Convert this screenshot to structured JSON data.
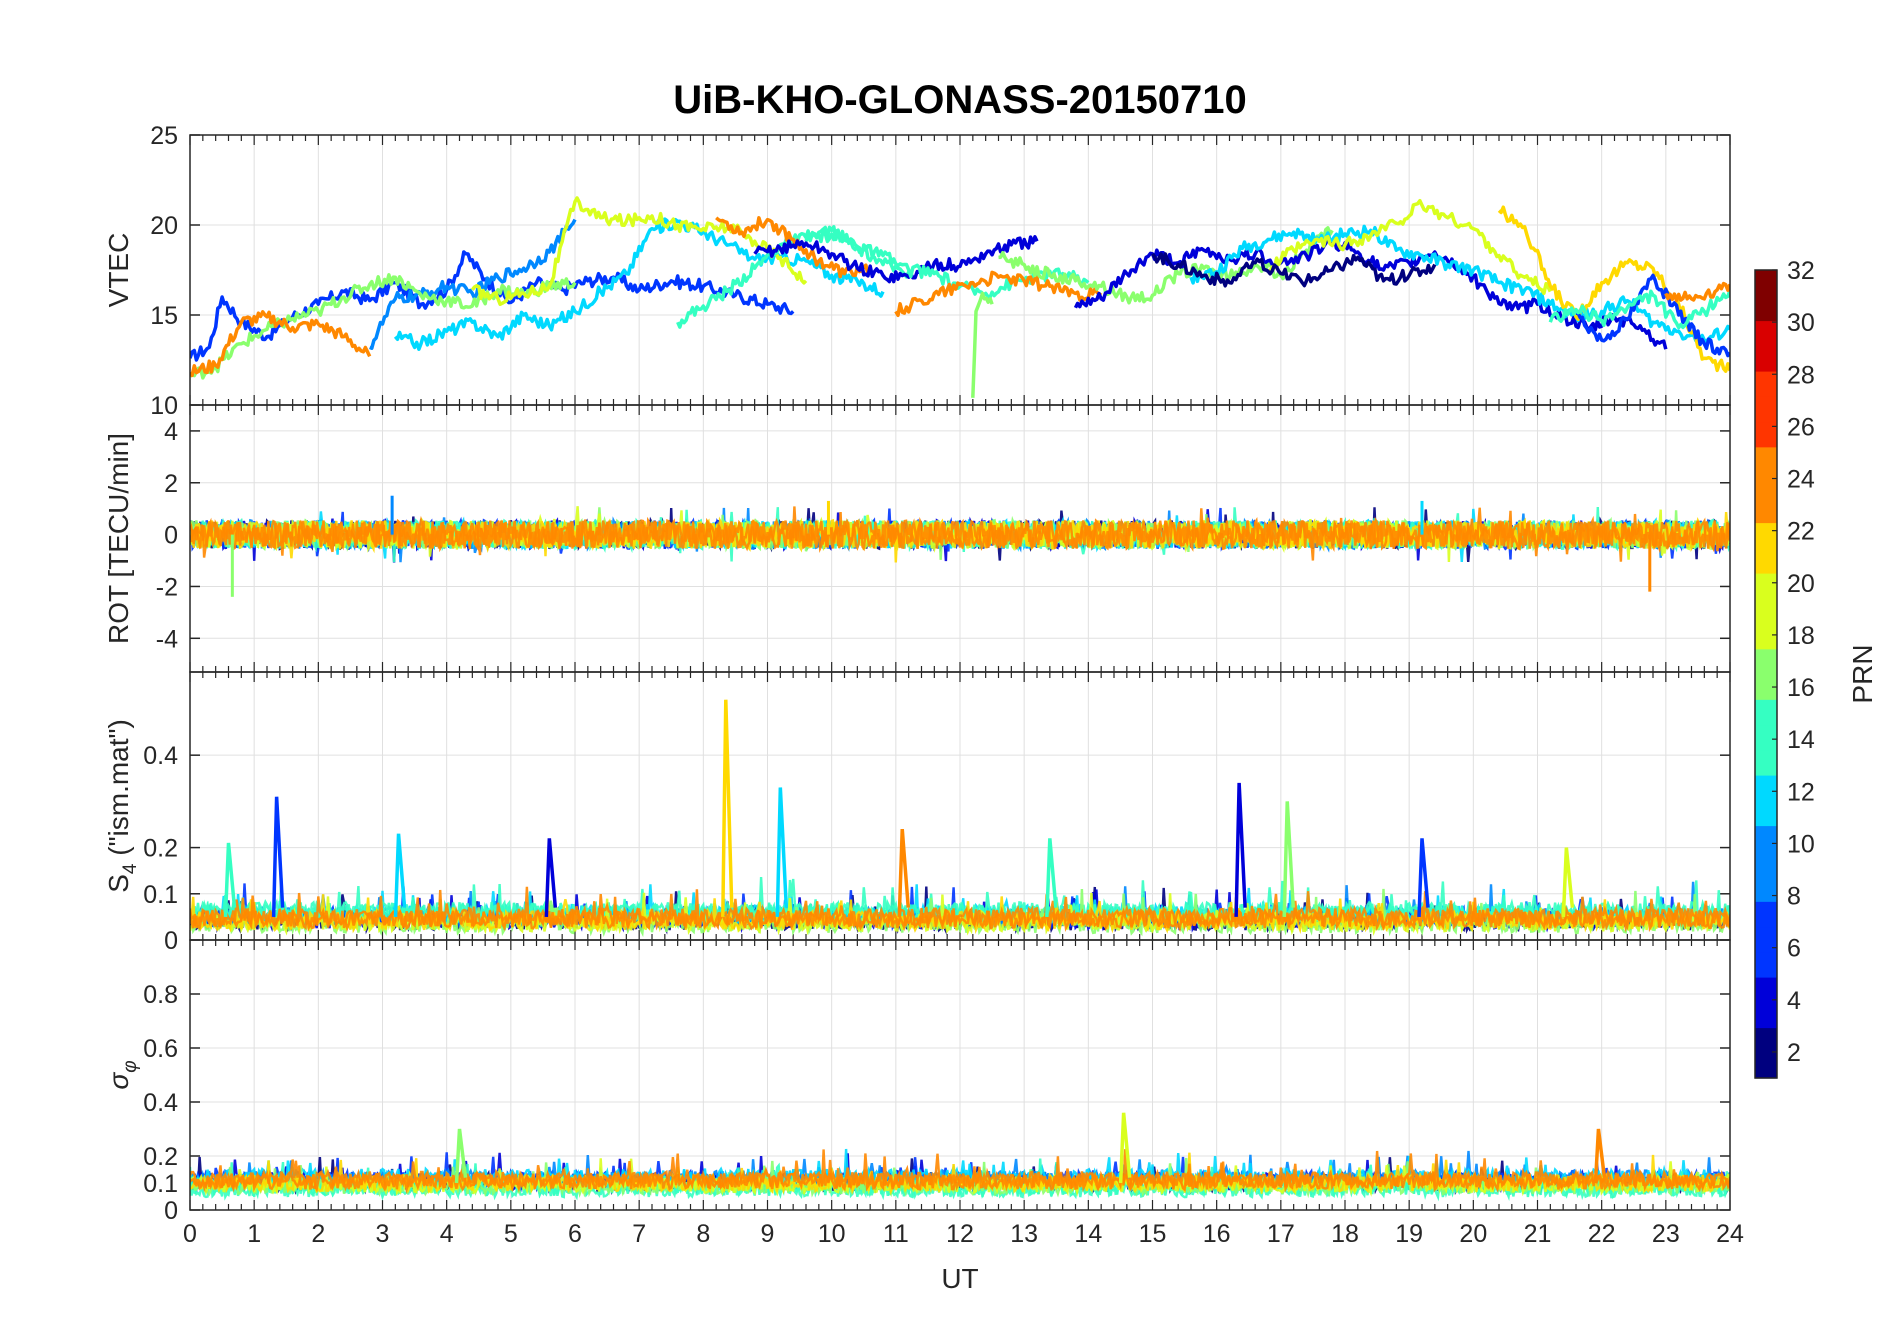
{
  "title": "UiB-KHO-GLONASS-20150710",
  "colors": {
    "grid": "#e0e0e0",
    "axis": "#262626",
    "colorbar": [
      "#00007f",
      "#0000d9",
      "#0035ff",
      "#0088ff",
      "#00d9ff",
      "#35ffc2",
      "#8aff6d",
      "#d9ff1e",
      "#ffd900",
      "#ff8800",
      "#ff3500",
      "#d90000",
      "#7f0000"
    ]
  },
  "chart_data": {
    "type": "line",
    "xlabel": "UT",
    "xlim": [
      0,
      24
    ],
    "xticks": [
      "0",
      "1",
      "2",
      "3",
      "4",
      "5",
      "6",
      "7",
      "8",
      "9",
      "10",
      "11",
      "12",
      "13",
      "14",
      "15",
      "16",
      "17",
      "18",
      "19",
      "20",
      "21",
      "22",
      "23",
      "24"
    ],
    "colorbar": {
      "label": "PRN",
      "ticks": [
        "2",
        "4",
        "6",
        "8",
        "10",
        "12",
        "14",
        "16",
        "18",
        "20",
        "22",
        "24",
        "26",
        "28",
        "30",
        "32"
      ],
      "range": [
        1,
        32
      ]
    },
    "panels": [
      {
        "ylabel": "VTEC",
        "ylim": [
          10,
          25
        ],
        "yticks": [
          "10",
          "15",
          "20",
          "25"
        ],
        "series": [
          {
            "prn": 6,
            "x": [
              0,
              0.3,
              0.5,
              0.8,
              1.2,
              1.6,
              2.0,
              2.4,
              2.8,
              3.2,
              3.6,
              4.0,
              4.3,
              4.6,
              5.0,
              5.4,
              5.8,
              6.2,
              6.6,
              7.0,
              7.5,
              8.0,
              8.5,
              9.0,
              9.4
            ],
            "y": [
              12.6,
              13.2,
              16.0,
              14.6,
              13.8,
              14.9,
              15.6,
              16.3,
              15.8,
              16.8,
              15.6,
              16.4,
              18.4,
              17.0,
              15.7,
              16.8,
              16.4,
              16.9,
              17.1,
              16.4,
              16.9,
              16.6,
              16.1,
              15.6,
              15.2
            ]
          },
          {
            "prn": 9,
            "x": [
              2.8,
              3.2,
              3.6,
              4.0,
              4.4,
              4.8,
              5.2,
              5.6,
              6.0
            ],
            "y": [
              13.2,
              15.9,
              16.1,
              16.6,
              16.2,
              17.1,
              17.6,
              18.5,
              20.3
            ]
          },
          {
            "prn": 12,
            "x": [
              3.2,
              3.6,
              4.0,
              4.4,
              4.8,
              5.2,
              5.6,
              6.0,
              6.4,
              6.8,
              7.2,
              7.6,
              8.0,
              8.4,
              8.8,
              9.2,
              9.6,
              10.0,
              10.4,
              10.8
            ],
            "y": [
              13.8,
              13.4,
              14.1,
              14.6,
              13.8,
              15.0,
              14.4,
              15.2,
              16.3,
              17.3,
              19.8,
              20.2,
              19.6,
              18.9,
              18.1,
              18.2,
              18.0,
              17.2,
              16.9,
              16.3
            ]
          },
          {
            "prn": 17,
            "x": [
              0,
              0.4,
              0.8,
              1.2,
              1.6,
              2.0,
              2.4,
              2.8,
              3.2,
              3.6,
              4.0,
              4.4,
              4.8,
              5.2,
              5.6,
              6.0
            ],
            "y": [
              11.6,
              12.1,
              13.4,
              14.2,
              14.8,
              15.2,
              16.0,
              16.7,
              17.1,
              16.1,
              15.8,
              15.5,
              16.4,
              16.2,
              16.6,
              16.8
            ]
          },
          {
            "prn": 20,
            "x": [
              4.4,
              4.8,
              5.2,
              5.6,
              6.0,
              6.4,
              6.8,
              7.2,
              7.6,
              8.0,
              8.4,
              8.8,
              9.2,
              9.6
            ],
            "y": [
              16.4,
              15.9,
              16.2,
              16.6,
              21.3,
              20.4,
              20.2,
              20.5,
              20.0,
              19.8,
              19.9,
              19.1,
              18.2,
              16.9
            ]
          },
          {
            "prn": 14,
            "x": [
              7.6,
              8.0,
              8.4,
              8.8,
              9.2,
              9.6,
              10.0,
              10.4,
              10.8,
              11.2
            ],
            "y": [
              14.6,
              15.5,
              16.4,
              17.6,
              18.9,
              19.3,
              19.7,
              18.8,
              17.8,
              17.4
            ]
          },
          {
            "prn": 23,
            "x": [
              0,
              0.4,
              0.8,
              1.2,
              1.6,
              2.0,
              2.4,
              2.8
            ],
            "y": [
              11.8,
              12.2,
              14.6,
              14.9,
              14.3,
              14.5,
              13.8,
              12.7
            ]
          },
          {
            "prn": 23,
            "x": [
              8.2,
              8.6,
              9.0,
              9.4,
              9.8,
              10.2,
              10.6
            ],
            "y": [
              20.4,
              19.6,
              20.3,
              19.2,
              18.0,
              17.3,
              17.6
            ]
          },
          {
            "prn": 4,
            "x": [
              8.8,
              9.2,
              9.6,
              10.0,
              10.4,
              10.8,
              11.2,
              11.6,
              12.0,
              12.4,
              12.8,
              13.2
            ],
            "y": [
              18.4,
              18.7,
              19.0,
              18.4,
              17.6,
              17.2,
              17.1,
              17.9,
              17.7,
              18.4,
              18.9,
              19.1
            ]
          },
          {
            "prn": 15,
            "x": [
              9.6,
              10.0,
              10.4,
              10.8,
              11.2,
              11.6,
              12.0,
              12.4,
              12.8,
              13.2,
              13.6,
              14.0
            ],
            "y": [
              19.1,
              19.5,
              18.8,
              18.3,
              17.5,
              17.3,
              16.6,
              16.2,
              16.8,
              17.2,
              17.3,
              16.8
            ]
          },
          {
            "prn": 24,
            "x": [
              11.0,
              11.4,
              11.8,
              12.2,
              12.6,
              13.0,
              13.4,
              13.8,
              14.2
            ],
            "y": [
              15.2,
              15.8,
              16.4,
              16.8,
              17.1,
              16.9,
              16.6,
              16.2,
              16.1
            ]
          },
          {
            "prn": 16,
            "x": [
              12.2,
              12.25,
              12.35,
              12.5
            ],
            "y": [
              10.4,
              15.2,
              16.2,
              15.6
            ]
          },
          {
            "prn": 16,
            "x": [
              12.6,
              13.0,
              13.4,
              13.8,
              14.2,
              14.6,
              15.0,
              15.4,
              15.8,
              16.2,
              16.6,
              17.0,
              17.4,
              17.8
            ],
            "y": [
              18.2,
              17.8,
              17.2,
              16.9,
              16.6,
              16.0,
              16.1,
              17.3,
              17.6,
              17.1,
              17.8,
              17.2,
              18.6,
              19.7
            ]
          },
          {
            "prn": 3,
            "x": [
              13.8,
              14.2,
              14.6,
              15.0,
              15.4,
              15.8,
              16.2,
              16.6,
              17.0,
              17.4,
              17.8,
              18.2,
              18.6,
              19.0,
              19.4,
              19.8,
              20.2,
              20.6,
              21.0,
              21.4,
              21.8,
              22.2,
              22.6,
              23.0
            ],
            "y": [
              15.4,
              15.9,
              17.3,
              18.4,
              17.9,
              18.6,
              18.1,
              18.4,
              17.9,
              18.3,
              19.1,
              18.5,
              17.5,
              17.9,
              18.5,
              17.6,
              16.4,
              15.3,
              15.6,
              14.9,
              14.2,
              14.9,
              14.4,
              13.1
            ]
          },
          {
            "prn": 11,
            "x": [
              15.6,
              16.0,
              16.4,
              16.8,
              17.2,
              17.6,
              18.0,
              18.4,
              18.8,
              19.2,
              19.6,
              20.0,
              20.4,
              20.8,
              21.2,
              21.6,
              22.0,
              22.4,
              22.8,
              23.2,
              23.6,
              24.0
            ],
            "y": [
              17.1,
              17.4,
              18.7,
              19.2,
              19.6,
              19.1,
              19.5,
              19.7,
              18.6,
              18.3,
              17.8,
              17.5,
              16.8,
              16.4,
              15.6,
              14.9,
              15.2,
              15.8,
              14.6,
              14.1,
              13.6,
              14.2
            ]
          },
          {
            "prn": 19,
            "x": [
              16.8,
              17.2,
              17.6,
              18.0,
              18.4,
              18.8,
              19.2,
              19.6,
              20.0,
              20.4,
              20.8,
              21.2
            ],
            "y": [
              17.5,
              18.6,
              19.1,
              18.9,
              19.4,
              20.1,
              21.1,
              20.4,
              19.8,
              18.3,
              17.1,
              16.3
            ]
          },
          {
            "prn": 22,
            "x": [
              20.4,
              20.8,
              21.2,
              21.6,
              22.0,
              22.4,
              22.8,
              23.2,
              23.6,
              24.0
            ],
            "y": [
              20.8,
              19.9,
              16.6,
              14.9,
              16.8,
              17.9,
              17.6,
              15.6,
              12.6,
              11.9
            ]
          },
          {
            "prn": 7,
            "x": [
              21.6,
              22.0,
              22.4,
              22.8,
              23.2,
              23.6,
              24.0
            ],
            "y": [
              15.1,
              13.6,
              14.8,
              17.2,
              15.0,
              13.4,
              12.9
            ]
          },
          {
            "prn": 13,
            "x": [
              21.2,
              21.6,
              22.0,
              22.4,
              22.8,
              23.2,
              23.6,
              24.0
            ],
            "y": [
              14.6,
              15.3,
              14.7,
              15.4,
              16.1,
              14.3,
              15.2,
              16.4
            ]
          },
          {
            "prn": 25,
            "x": [
              23.0,
              23.4,
              23.8,
              24.0
            ],
            "y": [
              16.2,
              15.9,
              16.4,
              16.7
            ]
          },
          {
            "prn": 2,
            "x": [
              15.0,
              15.4,
              15.8,
              16.2,
              16.6,
              17.0,
              17.4,
              17.8,
              18.2,
              18.6,
              19.0,
              19.4
            ],
            "y": [
              18.4,
              17.8,
              17.2,
              16.8,
              17.9,
              17.3,
              16.9,
              17.5,
              18.2,
              16.9,
              17.2,
              17.8
            ]
          }
        ]
      },
      {
        "ylabel": "ROT [TECU/min]",
        "ylim": [
          -5.3,
          5.0
        ],
        "yticks": [
          "-4",
          "-2",
          "0",
          "2",
          "4"
        ],
        "annotations": [
          {
            "x": 0.66,
            "y": -2.4,
            "prn": 16
          },
          {
            "x": 3.15,
            "y": 1.5,
            "prn": 8
          },
          {
            "x": 9.95,
            "y": 1.3,
            "prn": 21
          },
          {
            "x": 22.75,
            "y": -2.2,
            "prn": 24
          },
          {
            "x": 19.2,
            "y": 1.3,
            "prn": 12
          }
        ]
      },
      {
        "ylabel": "S4 (\"ism.mat\")",
        "ylabel_main": "S",
        "ylabel_sub": "4",
        "ylabel_rest": " (\"ism.mat\")",
        "ylim": [
          0,
          0.58
        ],
        "yticks": [
          "0",
          "0.1",
          "0.2",
          "0.4"
        ],
        "spikes": [
          {
            "x": 0.6,
            "peak": 0.21,
            "prn": 15
          },
          {
            "x": 1.35,
            "peak": 0.31,
            "prn": 6
          },
          {
            "x": 3.25,
            "peak": 0.23,
            "prn": 11
          },
          {
            "x": 5.6,
            "peak": 0.22,
            "prn": 3
          },
          {
            "x": 8.35,
            "peak": 0.52,
            "prn": 21
          },
          {
            "x": 9.2,
            "peak": 0.33,
            "prn": 12
          },
          {
            "x": 11.1,
            "peak": 0.24,
            "prn": 24
          },
          {
            "x": 13.4,
            "peak": 0.22,
            "prn": 15
          },
          {
            "x": 16.35,
            "peak": 0.34,
            "prn": 3
          },
          {
            "x": 17.1,
            "peak": 0.3,
            "prn": 17
          },
          {
            "x": 19.2,
            "peak": 0.22,
            "prn": 5
          },
          {
            "x": 21.45,
            "peak": 0.2,
            "prn": 20
          }
        ]
      },
      {
        "ylabel": "σφ",
        "ylabel_main": "σ",
        "ylabel_sub": "φ",
        "ylim": [
          0,
          1.0
        ],
        "yticks": [
          "0",
          "0.1",
          "0.2",
          "0.4",
          "0.6",
          "0.8"
        ],
        "spikes": [
          {
            "x": 4.2,
            "peak": 0.3,
            "prn": 17
          },
          {
            "x": 14.55,
            "peak": 0.36,
            "prn": 18
          },
          {
            "x": 21.95,
            "peak": 0.3,
            "prn": 23
          }
        ]
      }
    ]
  }
}
